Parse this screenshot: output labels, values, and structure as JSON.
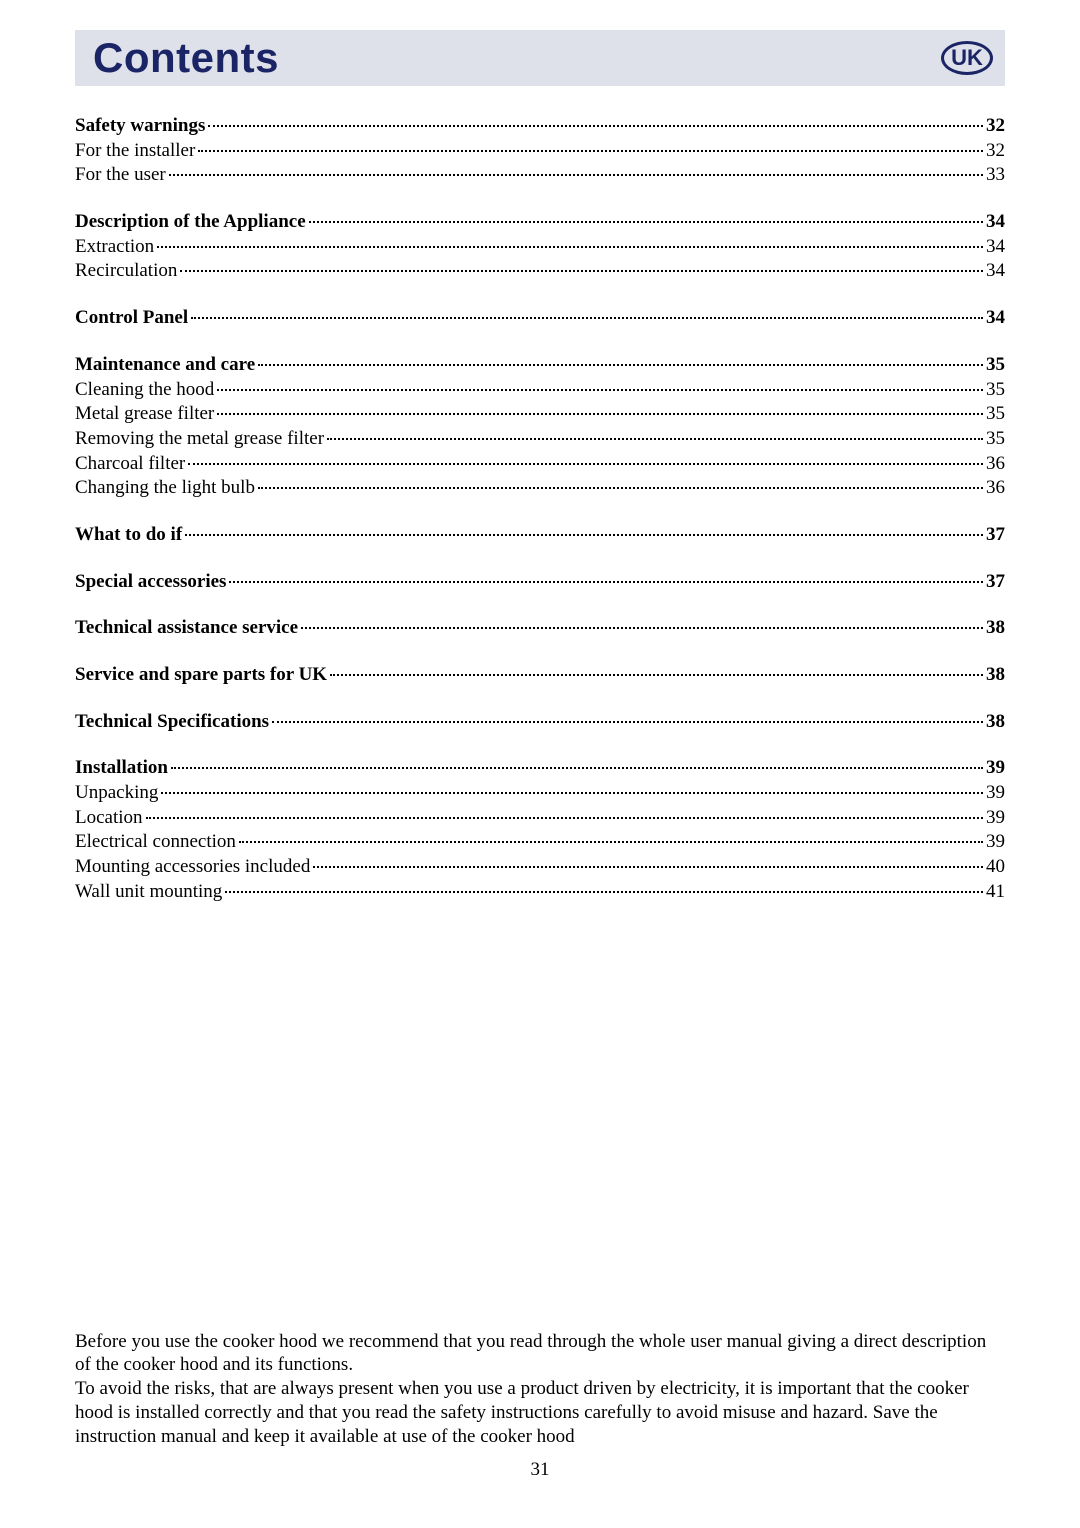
{
  "header": {
    "title": "Contents",
    "badge": "UK"
  },
  "toc": [
    {
      "items": [
        {
          "label": "Safety warnings",
          "page": "32",
          "bold": true
        },
        {
          "label": "For the installer",
          "page": "32",
          "bold": false
        },
        {
          "label": "For the user",
          "page": "33",
          "bold": false
        }
      ]
    },
    {
      "items": [
        {
          "label": "Description of the Appliance",
          "page": "34",
          "bold": true
        },
        {
          "label": "Extraction",
          "page": "34",
          "bold": false
        },
        {
          "label": "Recirculation",
          "page": "34",
          "bold": false
        }
      ]
    },
    {
      "items": [
        {
          "label": "Control Panel",
          "page": "34",
          "bold": true
        }
      ]
    },
    {
      "items": [
        {
          "label": "Maintenance and care",
          "page": "35",
          "bold": true
        },
        {
          "label": "Cleaning the hood",
          "page": "35",
          "bold": false
        },
        {
          "label": "Metal grease filter",
          "page": "35",
          "bold": false
        },
        {
          "label": "Removing the metal grease filter",
          "page": "35",
          "bold": false
        },
        {
          "label": "Charcoal filter",
          "page": "36",
          "bold": false
        },
        {
          "label": "Changing the light bulb",
          "page": "36",
          "bold": false
        }
      ]
    },
    {
      "items": [
        {
          "label": "What to do if",
          "page": "37",
          "bold": true
        }
      ]
    },
    {
      "items": [
        {
          "label": "Special accessories",
          "page": "37",
          "bold": true
        }
      ]
    },
    {
      "items": [
        {
          "label": "Technical assistance service",
          "page": "38",
          "bold": true
        }
      ]
    },
    {
      "items": [
        {
          "label": "Service and spare parts for UK",
          "page": "38",
          "bold": true
        }
      ]
    },
    {
      "items": [
        {
          "label": "Technical Specifications",
          "page": "38",
          "bold": true
        }
      ]
    },
    {
      "items": [
        {
          "label": "Installation",
          "page": "39",
          "bold": true
        },
        {
          "label": "Unpacking",
          "page": "39",
          "bold": false
        },
        {
          "label": "Location",
          "page": "39",
          "bold": false
        },
        {
          "label": "Electrical connection",
          "page": "39",
          "bold": false
        },
        {
          "label": "Mounting accessories included",
          "page": "40",
          "bold": false
        },
        {
          "label": "Wall unit mounting",
          "page": "41",
          "bold": false
        }
      ]
    }
  ],
  "footer": {
    "para1": "Before you use the cooker hood we recommend that you read through the whole user manual giving a direct description of the cooker hood and its functions.",
    "para2": "To avoid the risks, that are always present when you use a product driven by electricity, it is important that the cooker hood is installed correctly and that you read the safety instructions carefully to avoid misuse and hazard. Save the instruction manual and keep it available at use of the cooker hood",
    "pageNumber": "31"
  },
  "colors": {
    "headerBg": "#dfe1ea",
    "headerText": "#1b2566",
    "text": "#000000",
    "background": "#ffffff"
  },
  "fonts": {
    "body": "Times New Roman",
    "heading": "Arial"
  }
}
